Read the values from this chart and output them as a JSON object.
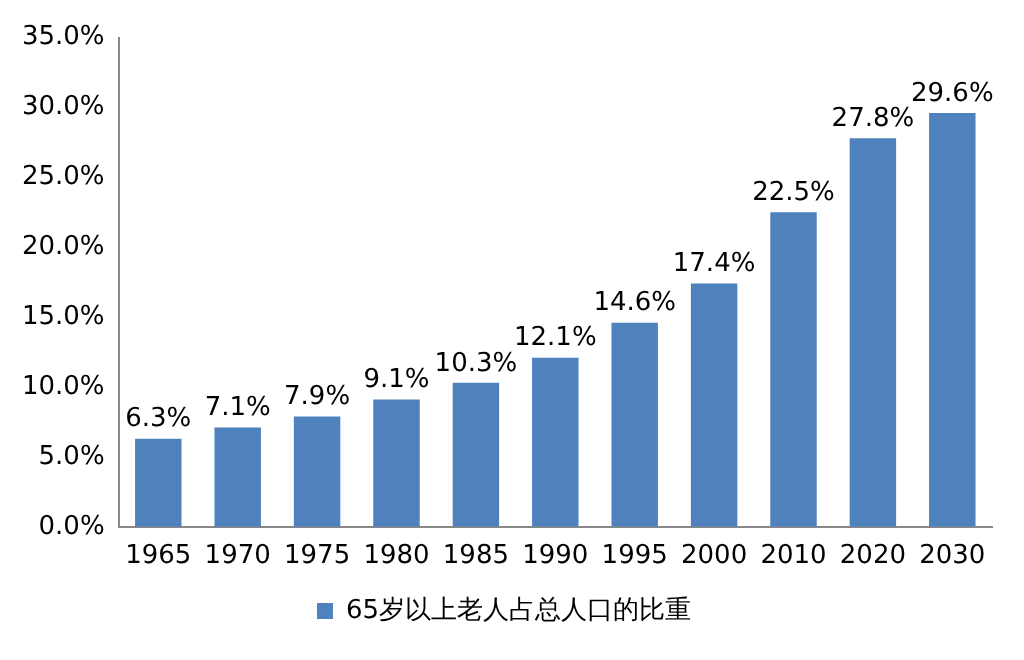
{
  "chart_data": {
    "type": "bar",
    "categories": [
      "1965",
      "1970",
      "1975",
      "1980",
      "1985",
      "1990",
      "1995",
      "2000",
      "2010",
      "2020",
      "2030"
    ],
    "series": [
      {
        "name": "65岁以上老人占总人口的比重",
        "color": "#4f81bd",
        "values": [
          6.3,
          7.1,
          7.9,
          9.1,
          10.3,
          12.1,
          14.6,
          17.4,
          22.5,
          27.8,
          29.6
        ],
        "value_labels": [
          "6.3%",
          "7.1%",
          "7.9%",
          "9.1%",
          "10.3%",
          "12.1%",
          "14.6%",
          "17.4%",
          "22.5%",
          "27.8%",
          "29.6%"
        ]
      }
    ],
    "ylim": [
      0,
      35
    ],
    "yticks": [
      {
        "value": 0,
        "label": "0.0%"
      },
      {
        "value": 5,
        "label": "5.0%"
      },
      {
        "value": 10,
        "label": "10.0%"
      },
      {
        "value": 15,
        "label": "15.0%"
      },
      {
        "value": 20,
        "label": "20.0%"
      },
      {
        "value": 25,
        "label": "25.0%"
      },
      {
        "value": 30,
        "label": "30.0%"
      },
      {
        "value": 35,
        "label": "35.0%"
      }
    ],
    "grid": false,
    "legend": "bottom"
  }
}
